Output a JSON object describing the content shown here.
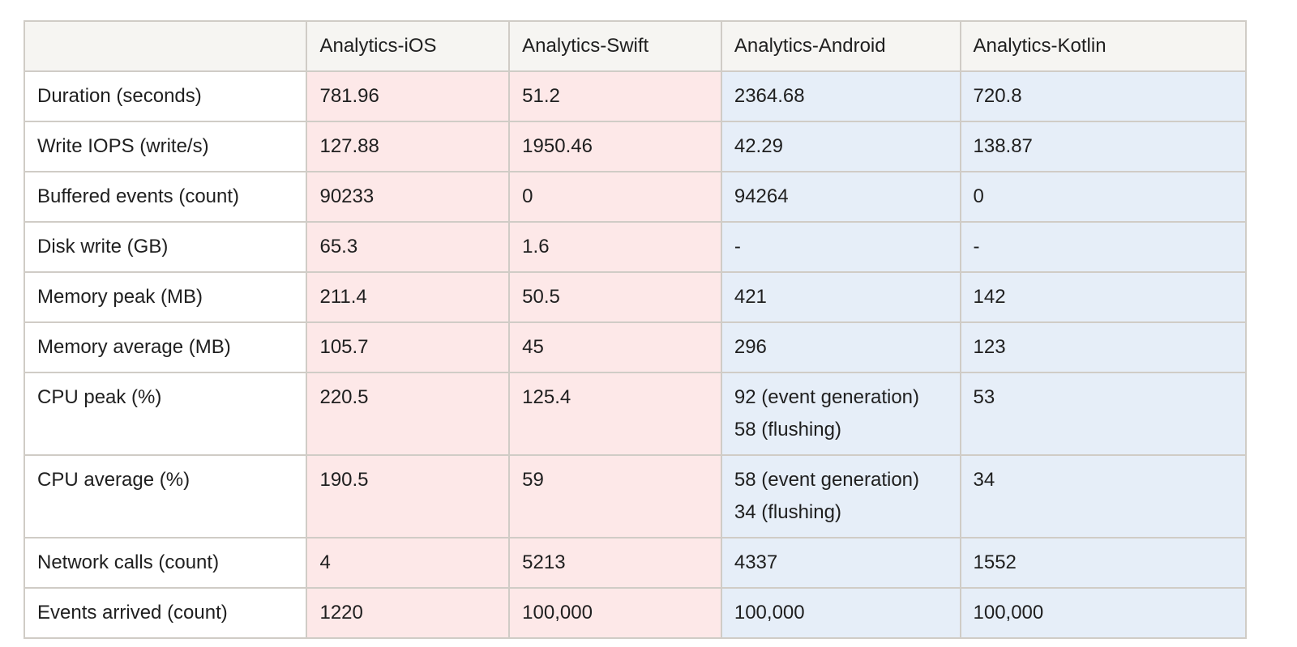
{
  "table": {
    "columns": [
      "",
      "Analytics-iOS",
      "Analytics-Swift",
      "Analytics-Android",
      "Analytics-Kotlin"
    ],
    "rows": [
      {
        "label": "Duration (seconds)",
        "values": [
          "781.96",
          "51.2",
          "2364.68",
          "720.8"
        ]
      },
      {
        "label": "Write IOPS (write/s)",
        "values": [
          "127.88",
          "1950.46",
          "42.29",
          "138.87"
        ]
      },
      {
        "label": "Buffered events (count)",
        "values": [
          "90233",
          "0",
          "94264",
          "0"
        ]
      },
      {
        "label": "Disk write (GB)",
        "values": [
          "65.3",
          "1.6",
          "-",
          "-"
        ]
      },
      {
        "label": "Memory peak (MB)",
        "values": [
          "211.4",
          "50.5",
          "421",
          "142"
        ]
      },
      {
        "label": "Memory average (MB)",
        "values": [
          "105.7",
          "45",
          "296",
          "123"
        ]
      },
      {
        "label": "CPU peak (%)",
        "values": [
          "220.5",
          "125.4",
          "92 (event generation)",
          "53"
        ],
        "android_line2": "58 (flushing)"
      },
      {
        "label": "CPU average (%)",
        "values": [
          "190.5",
          "59",
          "58 (event generation)",
          "34"
        ],
        "android_line2": "34 (flushing)"
      },
      {
        "label": "Network calls (count)",
        "values": [
          "4",
          "5213",
          "4337",
          "1552"
        ]
      },
      {
        "label": "Events arrived (count)",
        "values": [
          "1220",
          "100,000",
          "100,000",
          "100,000"
        ]
      }
    ]
  },
  "colors": {
    "header_bg": "#f6f5f2",
    "ios_group_bg": "#fde8e8",
    "android_group_bg": "#e6eef8",
    "border": "#d0ccc6"
  }
}
